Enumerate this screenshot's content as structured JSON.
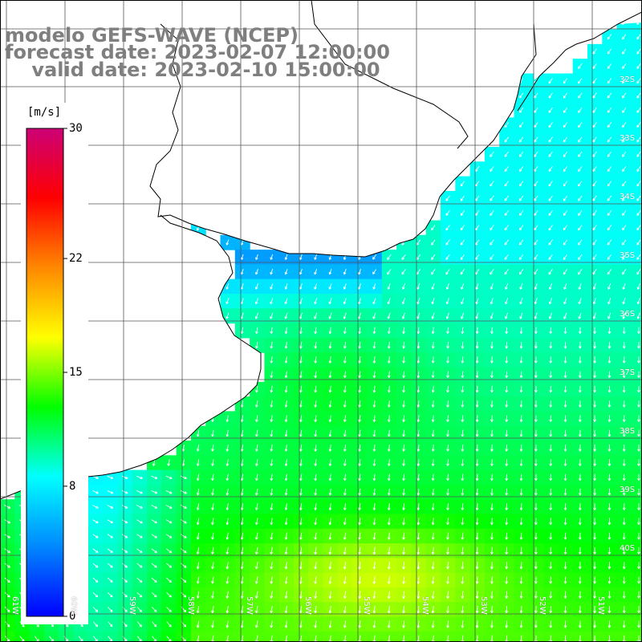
{
  "title": {
    "line1": "modelo GEFS-WAVE (NCEP)",
    "line2": "forecast date: 2023-02-07 12:00:00",
    "line3": "    valid date: 2023-02-10 15:00:00"
  },
  "colorbar": {
    "unit": "[m/s]",
    "min": 0,
    "max": 30,
    "ticks": [
      {
        "value": 30,
        "label": "30"
      },
      {
        "value": 22,
        "label": "22"
      },
      {
        "value": 15,
        "label": "15"
      },
      {
        "value": 8,
        "label": "8"
      },
      {
        "value": 0,
        "label": "0"
      }
    ],
    "stops": [
      "#0000ff",
      "#0088ff",
      "#00ffff",
      "#00ff00",
      "#ffff00",
      "#ff8800",
      "#ff0000",
      "#cc0077"
    ]
  },
  "map": {
    "variable": "wind speed and direction",
    "lat_labels": [
      "32S",
      "33S",
      "34S",
      "35S",
      "36S",
      "37S",
      "38S",
      "39S",
      "40S"
    ],
    "lon_labels": [
      "61W",
      "60W",
      "59W",
      "58W",
      "57W",
      "56W",
      "55W",
      "54W",
      "53W",
      "52W",
      "51W"
    ],
    "colors": {
      "land": "#ffffff",
      "coastline": "#000000",
      "grid": "#555555",
      "arrows": "#ffffff"
    }
  }
}
